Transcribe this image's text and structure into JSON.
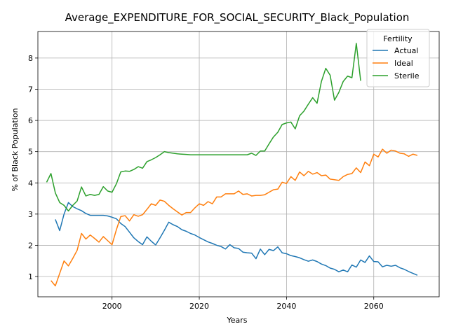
{
  "chart_data": {
    "type": "line",
    "title": "Average_EXPENDITURE_FOR_SOCIAL_SECURITY_Black_Population",
    "xlabel": "Years",
    "ylabel": "% of Black Population",
    "xlim": [
      1983,
      2075
    ],
    "ylim": [
      0.35,
      8.85
    ],
    "xticks": [
      2000,
      2020,
      2040,
      2060
    ],
    "yticks": [
      1,
      2,
      3,
      4,
      5,
      6,
      7,
      8
    ],
    "grid": true,
    "legend": {
      "title": "Fertility",
      "placement": "top-right"
    },
    "series": [
      {
        "name": "Actual",
        "color": "#1f77b4",
        "points": [
          [
            1987,
            2.83
          ],
          [
            1988,
            2.47
          ],
          [
            1989,
            3.0
          ],
          [
            1990,
            3.37
          ],
          [
            1991,
            3.24
          ],
          [
            1992,
            3.17
          ],
          [
            1993,
            3.11
          ],
          [
            1994,
            3.02
          ],
          [
            1995,
            2.96
          ],
          [
            1996,
            2.96
          ],
          [
            1997,
            2.96
          ],
          [
            1998,
            2.96
          ],
          [
            1999,
            2.94
          ],
          [
            2000,
            2.9
          ],
          [
            2001,
            2.85
          ],
          [
            2002,
            2.7
          ],
          [
            2003,
            2.6
          ],
          [
            2004,
            2.42
          ],
          [
            2005,
            2.24
          ],
          [
            2006,
            2.12
          ],
          [
            2007,
            2.02
          ],
          [
            2008,
            2.27
          ],
          [
            2009,
            2.13
          ],
          [
            2010,
            2.01
          ],
          [
            2011,
            2.24
          ],
          [
            2012,
            2.48
          ],
          [
            2013,
            2.74
          ],
          [
            2014,
            2.66
          ],
          [
            2015,
            2.6
          ],
          [
            2016,
            2.5
          ],
          [
            2017,
            2.45
          ],
          [
            2018,
            2.38
          ],
          [
            2019,
            2.33
          ],
          [
            2020,
            2.25
          ],
          [
            2021,
            2.18
          ],
          [
            2022,
            2.11
          ],
          [
            2023,
            2.06
          ],
          [
            2024,
            2.0
          ],
          [
            2025,
            1.96
          ],
          [
            2026,
            1.88
          ],
          [
            2027,
            2.02
          ],
          [
            2028,
            1.92
          ],
          [
            2029,
            1.9
          ],
          [
            2030,
            1.78
          ],
          [
            2031,
            1.76
          ],
          [
            2032,
            1.75
          ],
          [
            2033,
            1.57
          ],
          [
            2034,
            1.88
          ],
          [
            2035,
            1.7
          ],
          [
            2036,
            1.87
          ],
          [
            2037,
            1.83
          ],
          [
            2038,
            1.95
          ],
          [
            2039,
            1.76
          ],
          [
            2040,
            1.73
          ],
          [
            2041,
            1.67
          ],
          [
            2042,
            1.64
          ],
          [
            2043,
            1.6
          ],
          [
            2044,
            1.54
          ],
          [
            2045,
            1.49
          ],
          [
            2046,
            1.53
          ],
          [
            2047,
            1.48
          ],
          [
            2048,
            1.4
          ],
          [
            2049,
            1.35
          ],
          [
            2050,
            1.27
          ],
          [
            2051,
            1.23
          ],
          [
            2052,
            1.15
          ],
          [
            2053,
            1.21
          ],
          [
            2054,
            1.15
          ],
          [
            2055,
            1.37
          ],
          [
            2056,
            1.3
          ],
          [
            2057,
            1.53
          ],
          [
            2058,
            1.45
          ],
          [
            2059,
            1.66
          ],
          [
            2060,
            1.48
          ],
          [
            2061,
            1.47
          ],
          [
            2062,
            1.31
          ],
          [
            2063,
            1.36
          ],
          [
            2064,
            1.33
          ],
          [
            2065,
            1.36
          ],
          [
            2066,
            1.28
          ],
          [
            2067,
            1.23
          ],
          [
            2068,
            1.16
          ],
          [
            2069,
            1.1
          ],
          [
            2070,
            1.04
          ]
        ]
      },
      {
        "name": "Ideal",
        "color": "#ff7f0e",
        "points": [
          [
            1986,
            0.87
          ],
          [
            1987,
            0.7
          ],
          [
            1988,
            1.1
          ],
          [
            1989,
            1.5
          ],
          [
            1990,
            1.34
          ],
          [
            1991,
            1.58
          ],
          [
            1992,
            1.84
          ],
          [
            1993,
            2.38
          ],
          [
            1994,
            2.2
          ],
          [
            1995,
            2.33
          ],
          [
            1996,
            2.22
          ],
          [
            1997,
            2.1
          ],
          [
            1998,
            2.28
          ],
          [
            1999,
            2.15
          ],
          [
            2000,
            2.02
          ],
          [
            2001,
            2.5
          ],
          [
            2002,
            2.92
          ],
          [
            2003,
            2.95
          ],
          [
            2004,
            2.78
          ],
          [
            2005,
            2.98
          ],
          [
            2006,
            2.93
          ],
          [
            2007,
            2.98
          ],
          [
            2008,
            3.15
          ],
          [
            2009,
            3.33
          ],
          [
            2010,
            3.28
          ],
          [
            2011,
            3.45
          ],
          [
            2012,
            3.41
          ],
          [
            2013,
            3.28
          ],
          [
            2014,
            3.17
          ],
          [
            2015,
            3.07
          ],
          [
            2016,
            2.97
          ],
          [
            2017,
            3.05
          ],
          [
            2018,
            3.05
          ],
          [
            2019,
            3.2
          ],
          [
            2020,
            3.33
          ],
          [
            2021,
            3.28
          ],
          [
            2022,
            3.4
          ],
          [
            2023,
            3.33
          ],
          [
            2024,
            3.55
          ],
          [
            2025,
            3.55
          ],
          [
            2026,
            3.65
          ],
          [
            2027,
            3.65
          ],
          [
            2028,
            3.65
          ],
          [
            2029,
            3.74
          ],
          [
            2030,
            3.63
          ],
          [
            2031,
            3.65
          ],
          [
            2032,
            3.58
          ],
          [
            2033,
            3.6
          ],
          [
            2034,
            3.6
          ],
          [
            2035,
            3.62
          ],
          [
            2036,
            3.7
          ],
          [
            2037,
            3.78
          ],
          [
            2038,
            3.8
          ],
          [
            2039,
            4.02
          ],
          [
            2040,
            3.98
          ],
          [
            2041,
            4.2
          ],
          [
            2042,
            4.08
          ],
          [
            2043,
            4.35
          ],
          [
            2044,
            4.23
          ],
          [
            2045,
            4.37
          ],
          [
            2046,
            4.28
          ],
          [
            2047,
            4.33
          ],
          [
            2048,
            4.23
          ],
          [
            2049,
            4.25
          ],
          [
            2050,
            4.12
          ],
          [
            2051,
            4.1
          ],
          [
            2052,
            4.08
          ],
          [
            2053,
            4.2
          ],
          [
            2054,
            4.27
          ],
          [
            2055,
            4.3
          ],
          [
            2056,
            4.48
          ],
          [
            2057,
            4.33
          ],
          [
            2058,
            4.67
          ],
          [
            2059,
            4.55
          ],
          [
            2060,
            4.92
          ],
          [
            2061,
            4.83
          ],
          [
            2062,
            5.08
          ],
          [
            2063,
            4.95
          ],
          [
            2064,
            5.05
          ],
          [
            2065,
            5.02
          ],
          [
            2066,
            4.95
          ],
          [
            2067,
            4.93
          ],
          [
            2068,
            4.85
          ],
          [
            2069,
            4.92
          ],
          [
            2070,
            4.88
          ]
        ]
      },
      {
        "name": "Sterile",
        "color": "#2ca02c",
        "points": [
          [
            1985,
            4.02
          ],
          [
            1986,
            4.3
          ],
          [
            1987,
            3.68
          ],
          [
            1988,
            3.37
          ],
          [
            1989,
            3.28
          ],
          [
            1990,
            3.1
          ],
          [
            1991,
            3.28
          ],
          [
            1992,
            3.42
          ],
          [
            1993,
            3.87
          ],
          [
            1994,
            3.58
          ],
          [
            1995,
            3.63
          ],
          [
            1996,
            3.6
          ],
          [
            1997,
            3.63
          ],
          [
            1998,
            3.88
          ],
          [
            1999,
            3.74
          ],
          [
            2000,
            3.7
          ],
          [
            2001,
            3.97
          ],
          [
            2002,
            4.35
          ],
          [
            2003,
            4.38
          ],
          [
            2004,
            4.37
          ],
          [
            2005,
            4.43
          ],
          [
            2006,
            4.52
          ],
          [
            2007,
            4.47
          ],
          [
            2008,
            4.68
          ],
          [
            2009,
            4.74
          ],
          [
            2010,
            4.81
          ],
          [
            2011,
            4.9
          ],
          [
            2012,
            5.0
          ],
          [
            2013,
            4.97
          ],
          [
            2014,
            4.95
          ],
          [
            2015,
            4.93
          ],
          [
            2016,
            4.92
          ],
          [
            2017,
            4.91
          ],
          [
            2018,
            4.9
          ],
          [
            2019,
            4.9
          ],
          [
            2020,
            4.9
          ],
          [
            2021,
            4.9
          ],
          [
            2022,
            4.9
          ],
          [
            2023,
            4.9
          ],
          [
            2024,
            4.9
          ],
          [
            2025,
            4.9
          ],
          [
            2026,
            4.9
          ],
          [
            2027,
            4.9
          ],
          [
            2028,
            4.9
          ],
          [
            2029,
            4.9
          ],
          [
            2030,
            4.9
          ],
          [
            2031,
            4.9
          ],
          [
            2032,
            4.95
          ],
          [
            2033,
            4.88
          ],
          [
            2034,
            5.02
          ],
          [
            2035,
            5.02
          ],
          [
            2036,
            5.25
          ],
          [
            2037,
            5.47
          ],
          [
            2038,
            5.62
          ],
          [
            2039,
            5.87
          ],
          [
            2040,
            5.92
          ],
          [
            2041,
            5.95
          ],
          [
            2042,
            5.73
          ],
          [
            2043,
            6.15
          ],
          [
            2044,
            6.3
          ],
          [
            2045,
            6.52
          ],
          [
            2046,
            6.73
          ],
          [
            2047,
            6.55
          ],
          [
            2048,
            7.25
          ],
          [
            2049,
            7.67
          ],
          [
            2050,
            7.45
          ],
          [
            2051,
            6.65
          ],
          [
            2052,
            6.9
          ],
          [
            2053,
            7.25
          ],
          [
            2054,
            7.42
          ],
          [
            2055,
            7.37
          ],
          [
            2056,
            8.47
          ],
          [
            2057,
            7.27
          ]
        ]
      }
    ]
  }
}
